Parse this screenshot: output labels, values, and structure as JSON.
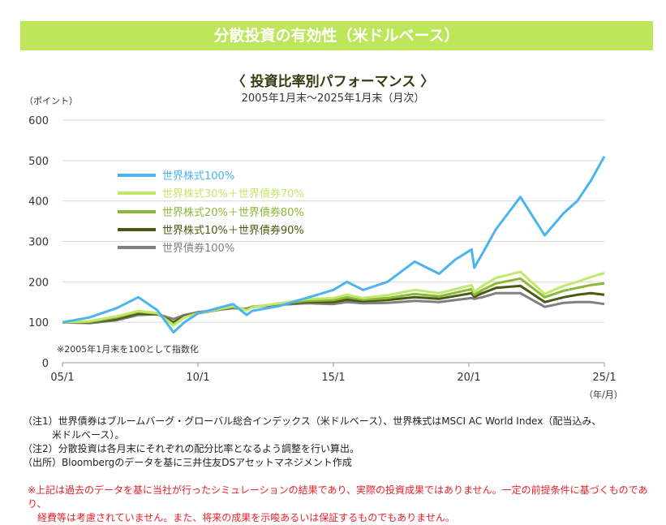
{
  "header": {
    "title": "分散投資の有効性（米ドルベース）"
  },
  "notes": [
    "（注1）世界債券はブルームバーグ・グローバル総合インデックス（米ドルベース）、世界株式はMSCI AC World Index（配当込み、",
    "　　　米ドルベース）。",
    "（注2）分散投資は各月末にそれぞれの配分比率となるよう調整を行い算出。",
    "（出所）Bloombergのデータを基に三井住友DSアセットマネジメント作成"
  ],
  "warning": [
    "※上記は過去のデータを基に当社が行ったシミュレーションの結果であり、実際の投資成果ではありません。一定の前提条件に基づくものであり、",
    "　経費等は考慮されていません。また、将来の成果を示唆あるいは保証するものでもありません。"
  ],
  "chart_data": {
    "type": "line",
    "title": "〈 投資比率別パフォーマンス 〉",
    "subtitle": "2005年1月末～2025年1月末（月次）",
    "ylabel": "（ポイント）",
    "xlabel": "（年/月）",
    "annotation": "※2005年1月末を100として指数化",
    "ylim": [
      0,
      600
    ],
    "xlim": [
      2005,
      2025
    ],
    "yticks": [
      0,
      100,
      200,
      300,
      400,
      500,
      600
    ],
    "xticks": [
      {
        "v": 2005,
        "label": "05/1"
      },
      {
        "v": 2010,
        "label": "10/1"
      },
      {
        "v": 2015,
        "label": "15/1"
      },
      {
        "v": 2020,
        "label": "20/1"
      },
      {
        "v": 2025,
        "label": "25/1"
      }
    ],
    "grid": true,
    "legend_position": "top-left",
    "x": [
      2005,
      2006,
      2007,
      2007.8,
      2008.5,
      2009.1,
      2009.5,
      2010,
      2011.3,
      2011.8,
      2012,
      2013,
      2014,
      2015,
      2015.5,
      2016.1,
      2017,
      2018,
      2018.9,
      2019.5,
      2020.1,
      2020.2,
      2020.5,
      2021,
      2021.9,
      2022.8,
      2023.5,
      2024,
      2024.5,
      2025
    ],
    "series": [
      {
        "name": "世界株式100%",
        "color": "#4bb3ef",
        "values": [
          100,
          112,
          135,
          162,
          130,
          75,
          100,
          122,
          145,
          118,
          128,
          140,
          160,
          180,
          200,
          180,
          200,
          250,
          220,
          255,
          280,
          235,
          270,
          330,
          410,
          315,
          370,
          400,
          450,
          510
        ]
      },
      {
        "name": "世界株式30%＋世界債券70%",
        "color": "#c2e86b",
        "values": [
          100,
          103,
          115,
          128,
          123,
          92,
          112,
          122,
          140,
          130,
          137,
          147,
          157,
          160,
          168,
          160,
          167,
          180,
          172,
          182,
          192,
          175,
          190,
          210,
          225,
          170,
          190,
          200,
          212,
          222
        ]
      },
      {
        "name": "世界株式20%＋世界債券80%",
        "color": "#8cb83a",
        "values": [
          100,
          101,
          112,
          126,
          122,
          95,
          113,
          122,
          138,
          130,
          137,
          146,
          153,
          155,
          162,
          156,
          160,
          170,
          164,
          173,
          182,
          168,
          180,
          196,
          208,
          162,
          178,
          185,
          192,
          196
        ]
      },
      {
        "name": "世界株式10%＋世界債券90%",
        "color": "#4a5a10",
        "values": [
          100,
          100,
          108,
          122,
          120,
          100,
          115,
          122,
          137,
          132,
          138,
          145,
          150,
          150,
          156,
          152,
          155,
          162,
          158,
          165,
          172,
          163,
          172,
          185,
          190,
          150,
          162,
          168,
          172,
          168
        ]
      },
      {
        "name": "世界債券100%",
        "color": "#808080",
        "values": [
          100,
          98,
          105,
          118,
          120,
          108,
          118,
          125,
          135,
          133,
          138,
          143,
          147,
          145,
          150,
          147,
          148,
          153,
          150,
          155,
          160,
          158,
          162,
          172,
          172,
          138,
          148,
          150,
          150,
          145
        ]
      }
    ]
  }
}
